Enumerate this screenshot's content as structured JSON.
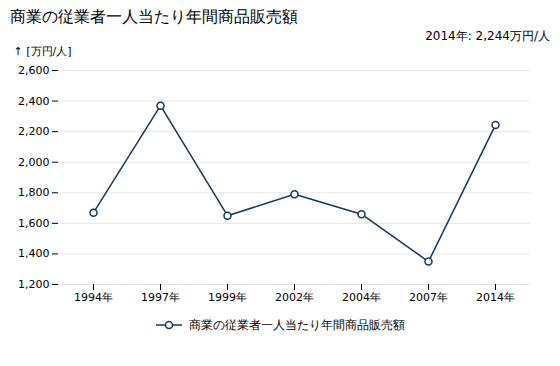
{
  "chart_data": {
    "type": "line",
    "title": "商業の従業者一人当たり年間商品販売額",
    "y_label": "[万円/人]",
    "annotation": "2014年: 2,244万円/人",
    "categories": [
      "1994年",
      "1997年",
      "1999年",
      "2002年",
      "2004年",
      "2007年",
      "2014年"
    ],
    "series": [
      {
        "name": "商業の従業者一人当たり年間商品販売額",
        "color": "#17375e",
        "marker": "circle",
        "values": [
          1670,
          2370,
          1650,
          1790,
          1660,
          1350,
          2244
        ]
      }
    ],
    "ylim": [
      1200,
      2600
    ],
    "yticks": [
      {
        "value": 1200,
        "label": "1,200"
      },
      {
        "value": 1400,
        "label": "1,400"
      },
      {
        "value": 1600,
        "label": "1,600"
      },
      {
        "value": 1800,
        "label": "1,800"
      },
      {
        "value": 2000,
        "label": "2,000"
      },
      {
        "value": 2200,
        "label": "2,200"
      },
      {
        "value": 2400,
        "label": "2,400"
      },
      {
        "value": 2600,
        "label": "2,600"
      }
    ],
    "grid": true,
    "legend": "bottom"
  }
}
